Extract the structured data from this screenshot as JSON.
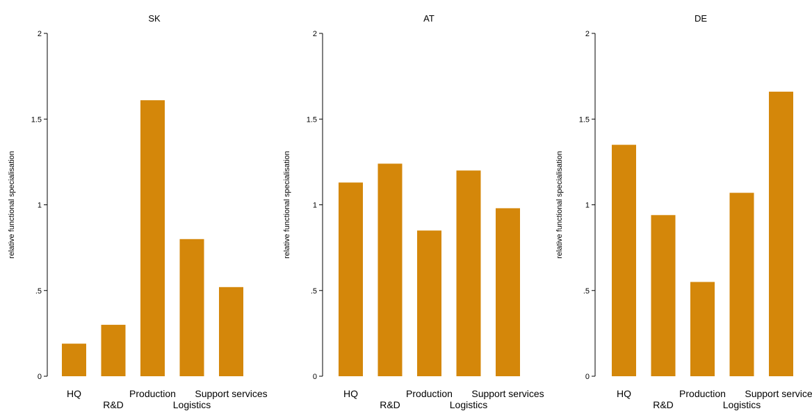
{
  "chart_data": [
    {
      "type": "bar",
      "title": "SK",
      "ylabel": "relative functional specialisation",
      "categories": [
        "HQ",
        "R&D",
        "Production",
        "Logistics",
        "Support services"
      ],
      "values": [
        0.19,
        0.3,
        1.61,
        0.8,
        0.52
      ],
      "ylim": [
        0,
        2
      ],
      "yticks": [
        0,
        0.5,
        1,
        1.5,
        2
      ],
      "ytick_labels": [
        "0",
        ".5",
        "1",
        "1.5",
        "2"
      ],
      "grid": false,
      "bar_color": "#D4870A"
    },
    {
      "type": "bar",
      "title": "AT",
      "ylabel": "relative functional specialisation",
      "categories": [
        "HQ",
        "R&D",
        "Production",
        "Logistics",
        "Support services"
      ],
      "values": [
        1.13,
        1.24,
        0.85,
        1.2,
        0.98
      ],
      "ylim": [
        0,
        2
      ],
      "yticks": [
        0,
        0.5,
        1,
        1.5,
        2
      ],
      "ytick_labels": [
        "0",
        ".5",
        "1",
        "1.5",
        "2"
      ],
      "grid": false,
      "bar_color": "#D4870A"
    },
    {
      "type": "bar",
      "title": "DE",
      "ylabel": "relative functional specialisation",
      "categories": [
        "HQ",
        "R&D",
        "Production",
        "Logistics",
        "Support services"
      ],
      "values": [
        1.35,
        0.94,
        0.55,
        1.07,
        1.66
      ],
      "ylim": [
        0,
        2
      ],
      "yticks": [
        0,
        0.5,
        1,
        1.5,
        2
      ],
      "ytick_labels": [
        "0",
        ".5",
        "1",
        "1.5",
        "2"
      ],
      "grid": false,
      "bar_color": "#D4870A"
    }
  ]
}
